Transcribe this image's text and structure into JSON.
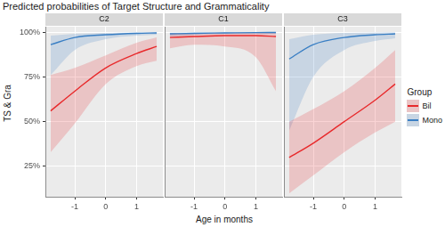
{
  "chart_data": {
    "type": "line",
    "title": "Predicted probabilities of Target Structure and Grammaticality",
    "x_label": "Age in months",
    "y_label": "TS & Gra",
    "legend_title": "Group",
    "legend": "right",
    "grid": true,
    "x": [
      -1.78,
      -1,
      0,
      1,
      1.65
    ],
    "xlim": [
      -1.95,
      1.85
    ],
    "xticks": [
      -1,
      0,
      1
    ],
    "ylim": [
      8,
      103
    ],
    "yticks": [
      {
        "value": 25,
        "label": "25%"
      },
      {
        "value": 50,
        "label": "50%"
      },
      {
        "value": 75,
        "label": "75%"
      },
      {
        "value": 100,
        "label": "100%"
      }
    ],
    "panels": [
      {
        "title": "C2",
        "series": [
          {
            "name": "Bil",
            "color": "#e8292b",
            "values": [
              56,
              67,
              80,
              88,
              92
            ],
            "lower": [
              33,
              49,
              71,
              81,
              84
            ],
            "upper": [
              76,
              80,
              87,
              94,
              97
            ]
          },
          {
            "name": "Mono",
            "color": "#3a7fc4",
            "values": [
              93,
              97,
              98.5,
              99.3,
              99.5
            ],
            "lower": [
              76,
              90,
              96,
              98,
              98.5
            ],
            "upper": [
              98,
              99,
              99.5,
              99.8,
              99.9
            ]
          }
        ]
      },
      {
        "title": "C1",
        "series": [
          {
            "name": "Bil",
            "color": "#e8292b",
            "values": [
              97,
              97.5,
              98,
              98,
              97.5
            ],
            "lower": [
              91,
              93,
              92,
              86,
              67
            ],
            "upper": [
              99.5,
              99.5,
              99.6,
              99.7,
              99.8
            ]
          },
          {
            "name": "Mono",
            "color": "#3a7fc4",
            "values": [
              99,
              99.3,
              99.5,
              99.7,
              99.8
            ],
            "lower": [
              97.5,
              98.5,
              99,
              99,
              99
            ],
            "upper": [
              99.7,
              99.8,
              99.9,
              99.95,
              99.98
            ]
          }
        ]
      },
      {
        "title": "C3",
        "series": [
          {
            "name": "Bil",
            "color": "#e8292b",
            "values": [
              30,
              38,
              50,
              62,
              71
            ],
            "lower": [
              10,
              20,
              33,
              44,
              50
            ],
            "upper": [
              50,
              57,
              67,
              80,
              90
            ]
          },
          {
            "name": "Mono",
            "color": "#3a7fc4",
            "values": [
              85,
              93,
              97,
              98.5,
              99
            ],
            "lower": [
              45,
              75,
              90,
              95,
              96.5
            ],
            "upper": [
              96,
              98.5,
              99.5,
              99.8,
              99.9
            ]
          }
        ]
      }
    ]
  }
}
